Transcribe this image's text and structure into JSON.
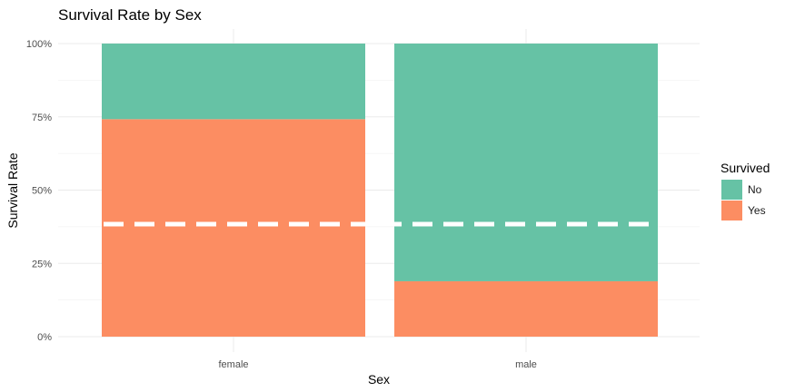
{
  "chart_data": {
    "type": "bar",
    "stacked": true,
    "position": "fill",
    "title": "Survival Rate by Sex",
    "xlabel": "Sex",
    "ylabel": "Survival Rate",
    "categories": [
      "female",
      "male"
    ],
    "series": [
      {
        "name": "No",
        "values": [
          0.258,
          0.811
        ],
        "color": "#66C2A5"
      },
      {
        "name": "Yes",
        "values": [
          0.742,
          0.189
        ],
        "color": "#FC8D62"
      }
    ],
    "yticks": [
      {
        "value": 0,
        "label": "0%"
      },
      {
        "value": 0.25,
        "label": "25%"
      },
      {
        "value": 0.5,
        "label": "50%"
      },
      {
        "value": 0.75,
        "label": "75%"
      },
      {
        "value": 1,
        "label": "100%"
      }
    ],
    "ylim": [
      0,
      1
    ],
    "reference_line": {
      "value": 0.384,
      "style": "dashed",
      "color": "#FFFFFF"
    },
    "legend": {
      "title": "Survived",
      "entries": [
        "No",
        "Yes"
      ],
      "placement": "right"
    },
    "grid": true
  }
}
